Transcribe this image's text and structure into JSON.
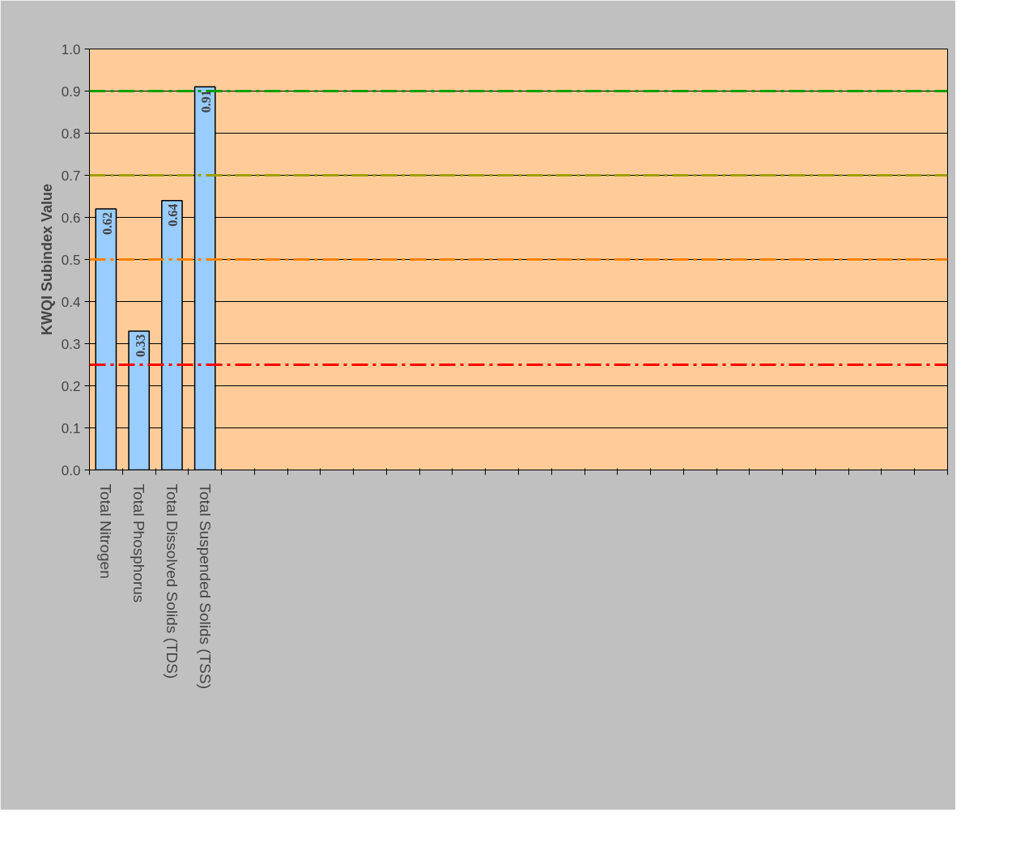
{
  "chart_data": {
    "type": "bar",
    "ylabel": "KWQI Subindex Value",
    "categories": [
      "Total Nitrogen",
      "Total Phosphorus",
      "Total Dissolved Solids (TDS)",
      "Total Suspended Solids (TSS)",
      null,
      null,
      null,
      null,
      null,
      null,
      null,
      null,
      null,
      null,
      null,
      null,
      null,
      null,
      null,
      null,
      null,
      null,
      null,
      null,
      null,
      null
    ],
    "values": [
      0.62,
      0.33,
      0.64,
      0.91,
      null,
      null,
      null,
      null,
      null,
      null,
      null,
      null,
      null,
      null,
      null,
      null,
      null,
      null,
      null,
      null,
      null,
      null,
      null,
      null,
      null,
      null
    ],
    "color": "#99ccff",
    "data_labels": true,
    "grid": "y",
    "ylim": [
      0,
      1
    ],
    "yticks": [
      {
        "value": 0,
        "label": "0.0"
      },
      0.1,
      0.2,
      0.3,
      0.4,
      0.5,
      0.6,
      0.7,
      0.8,
      0.9,
      {
        "value": 1,
        "label": "1.0"
      }
    ],
    "ref_lines": [
      {
        "axis": "y",
        "value": 0.9,
        "color": "#00a000",
        "line_style": "dashdot"
      },
      {
        "axis": "y",
        "value": 0.7,
        "color": "#a0a000",
        "line_style": "dashdot"
      },
      {
        "axis": "y",
        "value": 0.5,
        "color": "#ff8000",
        "line_style": "dashdot"
      },
      {
        "axis": "y",
        "value": 0.25,
        "color": "#ff0000",
        "line_style": "dashdot"
      }
    ]
  }
}
